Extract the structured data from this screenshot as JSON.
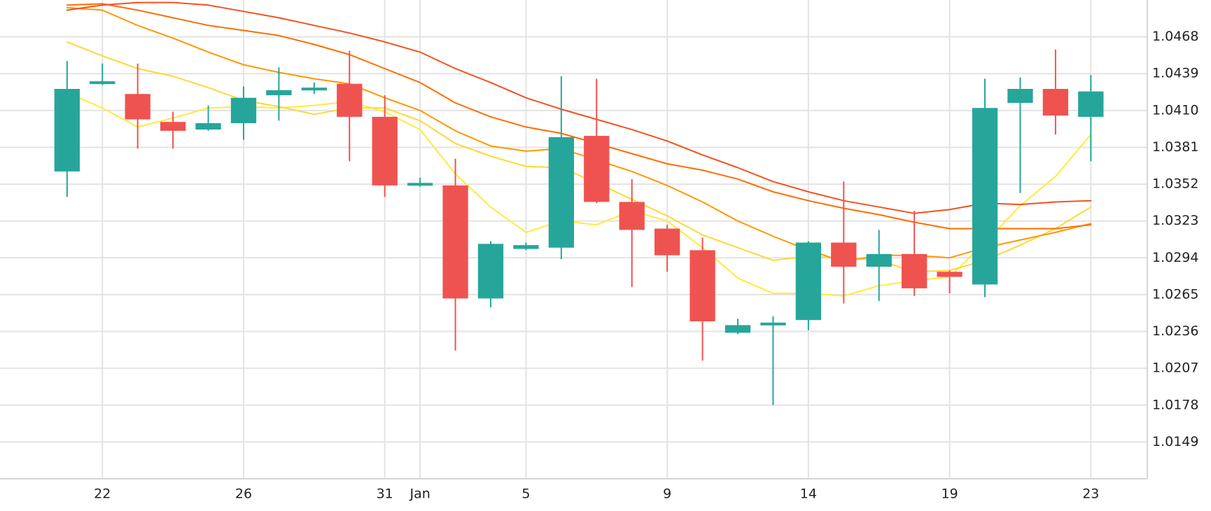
{
  "chart_data": {
    "type": "candlestick",
    "title": "",
    "xlabel": "",
    "ylabel": "",
    "ylim": [
      1.012,
      1.0497
    ],
    "y_ticks": [
      "1.0468",
      "1.0439",
      "1.0410",
      "1.0381",
      "1.0352",
      "1.0323",
      "1.0294",
      "1.0265",
      "1.0236",
      "1.0207",
      "1.0178",
      "1.0149"
    ],
    "x_ticks": [
      {
        "label": "22",
        "at": 1
      },
      {
        "label": "26",
        "at": 5
      },
      {
        "label": "31",
        "at": 9
      },
      {
        "label": "Jan",
        "at": 10
      },
      {
        "label": "5",
        "at": 13
      },
      {
        "label": "9",
        "at": 17
      },
      {
        "label": "14",
        "at": 21
      },
      {
        "label": "19",
        "at": 25
      },
      {
        "label": "23",
        "at": 29
      }
    ],
    "x_range": [
      -1.9,
      30.6
    ],
    "colors": {
      "up": "#26a69a",
      "down": "#ef5350",
      "grid": "#e3e3e3"
    },
    "candles": [
      {
        "x": 0,
        "open": 1.0362,
        "high": 1.0449,
        "low": 1.0342,
        "close": 1.0427
      },
      {
        "x": 1,
        "open": 1.0431,
        "high": 1.0447,
        "low": 1.043,
        "close": 1.0433
      },
      {
        "x": 2,
        "open": 1.0423,
        "high": 1.0447,
        "low": 1.038,
        "close": 1.0403
      },
      {
        "x": 3,
        "open": 1.0401,
        "high": 1.0409,
        "low": 1.038,
        "close": 1.0394
      },
      {
        "x": 4,
        "open": 1.0395,
        "high": 1.0414,
        "low": 1.0394,
        "close": 1.04
      },
      {
        "x": 5,
        "open": 1.04,
        "high": 1.0429,
        "low": 1.0387,
        "close": 1.042
      },
      {
        "x": 6,
        "open": 1.0422,
        "high": 1.0444,
        "low": 1.0402,
        "close": 1.0426
      },
      {
        "x": 7,
        "open": 1.0426,
        "high": 1.0432,
        "low": 1.0423,
        "close": 1.0428
      },
      {
        "x": 8,
        "open": 1.0431,
        "high": 1.0457,
        "low": 1.037,
        "close": 1.0405
      },
      {
        "x": 9,
        "open": 1.0405,
        "high": 1.0422,
        "low": 1.0342,
        "close": 1.0351
      },
      {
        "x": 10,
        "open": 1.0351,
        "high": 1.0357,
        "low": 1.035,
        "close": 1.0353
      },
      {
        "x": 11,
        "open": 1.0351,
        "high": 1.0372,
        "low": 1.0221,
        "close": 1.0262
      },
      {
        "x": 12,
        "open": 1.0262,
        "high": 1.0307,
        "low": 1.0255,
        "close": 1.0305
      },
      {
        "x": 13,
        "open": 1.0301,
        "high": 1.0306,
        "low": 1.03,
        "close": 1.0304
      },
      {
        "x": 14,
        "open": 1.0302,
        "high": 1.0437,
        "low": 1.0293,
        "close": 1.0389
      },
      {
        "x": 15,
        "open": 1.039,
        "high": 1.0435,
        "low": 1.0337,
        "close": 1.0338
      },
      {
        "x": 16,
        "open": 1.0338,
        "high": 1.0356,
        "low": 1.0271,
        "close": 1.0316
      },
      {
        "x": 17,
        "open": 1.0317,
        "high": 1.032,
        "low": 1.0283,
        "close": 1.0296
      },
      {
        "x": 18,
        "open": 1.03,
        "high": 1.031,
        "low": 1.0213,
        "close": 1.0244
      },
      {
        "x": 19,
        "open": 1.0235,
        "high": 1.0246,
        "low": 1.0234,
        "close": 1.0241
      },
      {
        "x": 20,
        "open": 1.0241,
        "high": 1.0248,
        "low": 1.0178,
        "close": 1.0243
      },
      {
        "x": 21,
        "open": 1.0245,
        "high": 1.0307,
        "low": 1.0237,
        "close": 1.0306
      },
      {
        "x": 22,
        "open": 1.0306,
        "high": 1.0354,
        "low": 1.0258,
        "close": 1.0287
      },
      {
        "x": 23,
        "open": 1.0287,
        "high": 1.0316,
        "low": 1.026,
        "close": 1.0297
      },
      {
        "x": 24,
        "open": 1.0297,
        "high": 1.0331,
        "low": 1.0264,
        "close": 1.027
      },
      {
        "x": 25,
        "open": 1.0283,
        "high": 1.0284,
        "low": 1.0266,
        "close": 1.0279
      },
      {
        "x": 26,
        "open": 1.0273,
        "high": 1.0435,
        "low": 1.0263,
        "close": 1.0412
      },
      {
        "x": 27,
        "open": 1.0416,
        "high": 1.0436,
        "low": 1.0345,
        "close": 1.0427
      },
      {
        "x": 28,
        "open": 1.0427,
        "high": 1.0458,
        "low": 1.0391,
        "close": 1.0406
      },
      {
        "x": 29,
        "open": 1.0405,
        "high": 1.0438,
        "low": 1.037,
        "close": 1.0425
      }
    ],
    "series": [
      {
        "color": "#ffeb3b",
        "points": [
          [
            0,
            1.0424
          ],
          [
            1,
            1.0412
          ],
          [
            2,
            1.0397
          ],
          [
            3,
            1.0404
          ],
          [
            4,
            1.0412
          ],
          [
            5,
            1.0413
          ],
          [
            6,
            1.0412
          ],
          [
            7,
            1.0414
          ],
          [
            8,
            1.0417
          ],
          [
            9,
            1.0409
          ],
          [
            10,
            1.0395
          ],
          [
            11,
            1.036
          ],
          [
            12,
            1.0334
          ],
          [
            13,
            1.0314
          ],
          [
            14,
            1.0323
          ],
          [
            15,
            1.032
          ],
          [
            16,
            1.0331
          ],
          [
            17,
            1.0323
          ],
          [
            18,
            1.0302
          ],
          [
            19,
            1.0278
          ],
          [
            20,
            1.0266
          ],
          [
            21,
            1.0266
          ],
          [
            22,
            1.0264
          ],
          [
            23,
            1.0272
          ],
          [
            24,
            1.0276
          ],
          [
            25,
            1.0279
          ],
          [
            26,
            1.0306
          ],
          [
            27,
            1.0335
          ],
          [
            28,
            1.0358
          ],
          [
            29,
            1.0391
          ]
        ]
      },
      {
        "color": "#fdd835",
        "points": [
          [
            0,
            1.0464
          ],
          [
            1,
            1.0453
          ],
          [
            2,
            1.0443
          ],
          [
            3,
            1.0437
          ],
          [
            4,
            1.0428
          ],
          [
            5,
            1.0418
          ],
          [
            6,
            1.0413
          ],
          [
            7,
            1.0407
          ],
          [
            8,
            1.0412
          ],
          [
            9,
            1.0412
          ],
          [
            10,
            1.0402
          ],
          [
            11,
            1.0384
          ],
          [
            12,
            1.0374
          ],
          [
            13,
            1.0366
          ],
          [
            14,
            1.0365
          ],
          [
            15,
            1.0353
          ],
          [
            16,
            1.034
          ],
          [
            17,
            1.0327
          ],
          [
            18,
            1.0312
          ],
          [
            19,
            1.0302
          ],
          [
            20,
            1.0292
          ],
          [
            21,
            1.0295
          ],
          [
            22,
            1.0294
          ],
          [
            23,
            1.0292
          ],
          [
            24,
            1.0283
          ],
          [
            25,
            1.0284
          ],
          [
            26,
            1.0292
          ],
          [
            27,
            1.0304
          ],
          [
            28,
            1.0317
          ],
          [
            29,
            1.0334
          ]
        ]
      },
      {
        "color": "#ff9800",
        "points": [
          [
            0,
            1.0491
          ],
          [
            1,
            1.0489
          ],
          [
            2,
            1.0477
          ],
          [
            3,
            1.0467
          ],
          [
            4,
            1.0456
          ],
          [
            5,
            1.0446
          ],
          [
            6,
            1.044
          ],
          [
            7,
            1.0435
          ],
          [
            8,
            1.0431
          ],
          [
            9,
            1.042
          ],
          [
            10,
            1.041
          ],
          [
            11,
            1.0394
          ],
          [
            12,
            1.0382
          ],
          [
            13,
            1.0378
          ],
          [
            14,
            1.038
          ],
          [
            15,
            1.0371
          ],
          [
            16,
            1.0362
          ],
          [
            17,
            1.0351
          ],
          [
            18,
            1.0338
          ],
          [
            19,
            1.0323
          ],
          [
            20,
            1.0311
          ],
          [
            21,
            1.03
          ],
          [
            22,
            1.0291
          ],
          [
            23,
            1.0296
          ],
          [
            24,
            1.0296
          ],
          [
            25,
            1.0294
          ],
          [
            26,
            1.0302
          ],
          [
            27,
            1.0308
          ],
          [
            28,
            1.0314
          ],
          [
            29,
            1.0321
          ]
        ]
      },
      {
        "color": "#ff6d00",
        "points": [
          [
            0,
            1.0493
          ],
          [
            1,
            1.0494
          ],
          [
            2,
            1.0489
          ],
          [
            3,
            1.0483
          ],
          [
            4,
            1.0477
          ],
          [
            5,
            1.0473
          ],
          [
            6,
            1.0469
          ],
          [
            7,
            1.0462
          ],
          [
            8,
            1.0454
          ],
          [
            9,
            1.0443
          ],
          [
            10,
            1.0432
          ],
          [
            11,
            1.0416
          ],
          [
            12,
            1.0405
          ],
          [
            13,
            1.0397
          ],
          [
            14,
            1.0392
          ],
          [
            15,
            1.0384
          ],
          [
            16,
            1.0376
          ],
          [
            17,
            1.0368
          ],
          [
            18,
            1.0363
          ],
          [
            19,
            1.0356
          ],
          [
            20,
            1.0346
          ],
          [
            21,
            1.0339
          ],
          [
            22,
            1.0333
          ],
          [
            23,
            1.0328
          ],
          [
            24,
            1.0322
          ],
          [
            25,
            1.0317
          ],
          [
            26,
            1.0317
          ],
          [
            27,
            1.0317
          ],
          [
            28,
            1.0317
          ],
          [
            29,
            1.032
          ]
        ]
      },
      {
        "color": "#f4511e",
        "points": [
          [
            0,
            1.0489
          ],
          [
            1,
            1.0493
          ],
          [
            2,
            1.0495
          ],
          [
            3,
            1.0495
          ],
          [
            4,
            1.0493
          ],
          [
            5,
            1.0488
          ],
          [
            6,
            1.0483
          ],
          [
            7,
            1.0477
          ],
          [
            8,
            1.0471
          ],
          [
            9,
            1.0464
          ],
          [
            10,
            1.0456
          ],
          [
            11,
            1.0443
          ],
          [
            12,
            1.0432
          ],
          [
            13,
            1.042
          ],
          [
            14,
            1.0411
          ],
          [
            15,
            1.0403
          ],
          [
            16,
            1.0395
          ],
          [
            17,
            1.0386
          ],
          [
            18,
            1.0375
          ],
          [
            19,
            1.0365
          ],
          [
            20,
            1.0354
          ],
          [
            21,
            1.0346
          ],
          [
            22,
            1.0339
          ],
          [
            23,
            1.0334
          ],
          [
            24,
            1.0329
          ],
          [
            25,
            1.0332
          ],
          [
            26,
            1.0337
          ],
          [
            27,
            1.0336
          ],
          [
            28,
            1.0338
          ],
          [
            29,
            1.0339
          ]
        ]
      }
    ]
  }
}
